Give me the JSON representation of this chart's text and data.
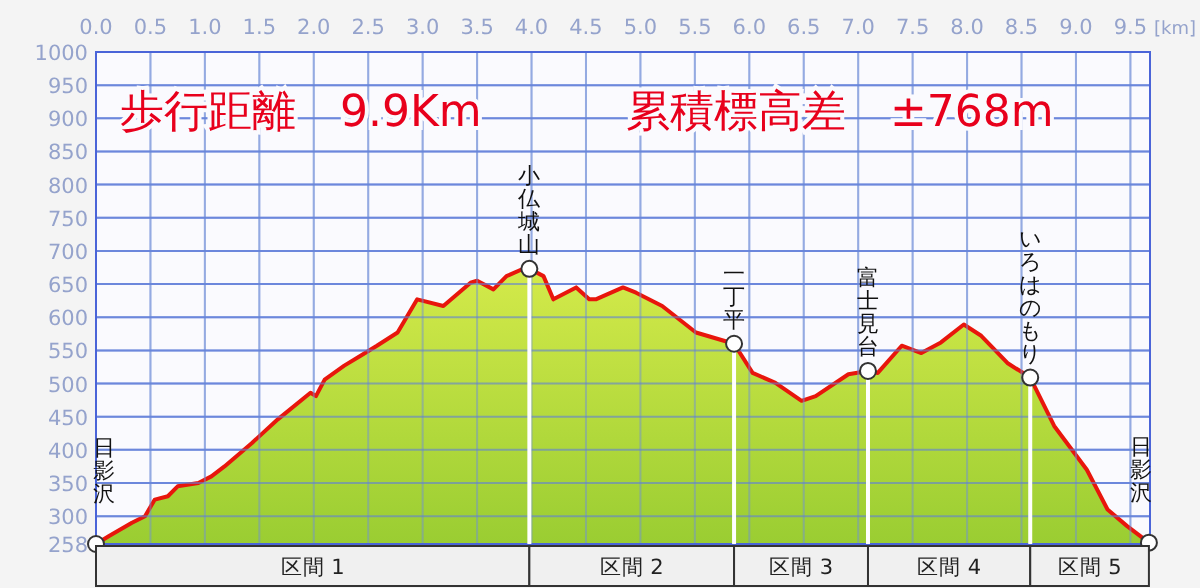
{
  "chart_data": {
    "type": "area",
    "title": "歩行距離　9.9Km",
    "subtitle": "累積標高差　±768m",
    "xlabel": "[km]",
    "xlim": [
      0,
      9.68
    ],
    "ylim": [
      258,
      1000
    ],
    "xticks": [
      {
        "value": 0,
        "label": "0.0"
      },
      0.5,
      {
        "value": 1,
        "label": "1.0"
      },
      1.5,
      {
        "value": 2,
        "label": "2.0"
      },
      2.5,
      {
        "value": 3,
        "label": "3.0"
      },
      3.5,
      {
        "value": 4,
        "label": "4.0"
      },
      4.5,
      {
        "value": 5,
        "label": "5.0"
      },
      5.5,
      {
        "value": 6,
        "label": "6.0"
      },
      6.5,
      {
        "value": 7,
        "label": "7.0"
      },
      7.5,
      {
        "value": 8,
        "label": "8.0"
      },
      8.5,
      {
        "value": 9,
        "label": "9.0"
      },
      9.5
    ],
    "yticks": [
      258,
      300,
      350,
      400,
      450,
      500,
      550,
      600,
      650,
      700,
      750,
      800,
      850,
      900,
      950,
      1000
    ],
    "grid": true,
    "series": [
      {
        "color": "#9acd32",
        "x": [
          0,
          0.12,
          0.33,
          0.45,
          0.54,
          0.66,
          0.75,
          0.94,
          1.06,
          1.18,
          1.43,
          1.67,
          1.97,
          2.02,
          2.1,
          2.28,
          2.43,
          2.58,
          2.77,
          2.95,
          3.19,
          3.44,
          3.5,
          3.65,
          3.77,
          3.95,
          3.98,
          4.11,
          4.2,
          4.41,
          4.53,
          4.59,
          4.84,
          4.96,
          5.2,
          5.51,
          5.86,
          6.03,
          6.24,
          6.48,
          6.61,
          6.91,
          7.09,
          7.18,
          7.4,
          7.58,
          7.76,
          7.97,
          8.13,
          8.37,
          8.58,
          8.8,
          9.1,
          9.29,
          9.47,
          9.67
        ],
        "values": [
          258,
          270,
          290,
          300,
          325,
          330,
          345,
          350,
          360,
          375,
          410,
          446,
          486,
          481,
          506,
          527,
          542,
          557,
          577,
          627,
          617,
          652,
          655,
          642,
          662,
          675,
          673,
          662,
          627,
          645,
          627,
          627,
          645,
          637,
          617,
          577,
          560,
          516,
          501,
          474,
          481,
          514,
          519,
          516,
          557,
          546,
          562,
          589,
          572,
          531,
          509,
          436,
          370,
          310,
          285,
          260
        ]
      }
    ],
    "annotations": [
      {
        "text": "日影沢",
        "x": 0,
        "y": 258
      },
      {
        "text": "小仏城山",
        "x": 3.98,
        "y": 673
      },
      {
        "text": "一丁平",
        "x": 5.86,
        "y": 560
      },
      {
        "text": "富士見台",
        "x": 7.09,
        "y": 519
      },
      {
        "text": "いろはのもり",
        "x": 8.58,
        "y": 509
      },
      {
        "text": "日影沢",
        "x": 9.67,
        "y": 260
      },
      "区間 1",
      "区間 2",
      "区間 3",
      "区間 4",
      "区間 5"
    ]
  }
}
